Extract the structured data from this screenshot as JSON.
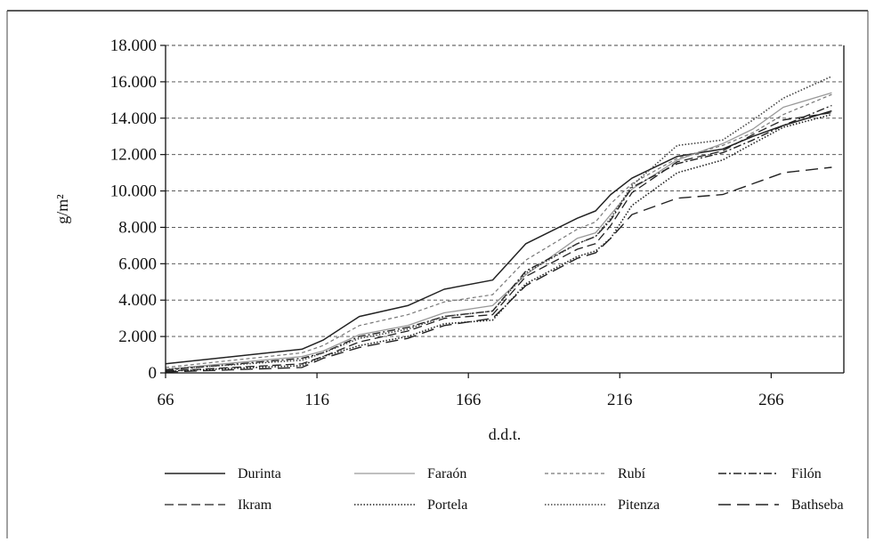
{
  "chart_data": {
    "type": "line",
    "title": "",
    "xlabel": "d.d.t.",
    "ylabel": "g/m²",
    "xlim": [
      66,
      290
    ],
    "ylim": [
      0,
      18000
    ],
    "x_ticks": [
      66,
      116,
      166,
      216,
      266
    ],
    "x_tick_labels": [
      "66",
      "116",
      "166",
      "216",
      "266"
    ],
    "y_ticks": [
      0,
      2000,
      4000,
      6000,
      8000,
      10000,
      12000,
      14000,
      16000,
      18000
    ],
    "y_tick_labels": [
      "0",
      "2.000",
      "4.000",
      "6.000",
      "8.000",
      "10.000",
      "12.000",
      "14.000",
      "16.000",
      "18.000"
    ],
    "grid": "horizontal dashed",
    "legend_position": "bottom",
    "series": [
      {
        "name": "Durinta",
        "style": "solid",
        "color": "#222222",
        "x": [
          66,
          111,
          118,
          130,
          146,
          158,
          174,
          185,
          202,
          208,
          213,
          220,
          235,
          250,
          260,
          270,
          286
        ],
        "y": [
          500,
          1300,
          1800,
          3100,
          3700,
          4600,
          5100,
          7100,
          8500,
          8900,
          9800,
          10700,
          11900,
          12300,
          13000,
          13600,
          14400
        ]
      },
      {
        "name": "Faraón",
        "style": "solid-light",
        "color": "#999999",
        "x": [
          66,
          111,
          118,
          130,
          146,
          158,
          174,
          185,
          202,
          208,
          213,
          220,
          235,
          250,
          260,
          270,
          286
        ],
        "y": [
          200,
          900,
          1200,
          2100,
          2600,
          3300,
          3700,
          5400,
          7400,
          7700,
          8700,
          10100,
          11700,
          12600,
          13400,
          14600,
          15400
        ]
      },
      {
        "name": "Rubí",
        "style": "short-dash",
        "color": "#777777",
        "x": [
          66,
          111,
          118,
          130,
          146,
          158,
          174,
          185,
          202,
          208,
          213,
          220,
          235,
          250,
          260,
          270,
          286
        ],
        "y": [
          300,
          1100,
          1500,
          2600,
          3200,
          3900,
          4300,
          6200,
          7900,
          8300,
          9300,
          10400,
          11800,
          12500,
          13200,
          14200,
          15300
        ]
      },
      {
        "name": "Filón",
        "style": "dash-dot",
        "color": "#222222",
        "x": [
          66,
          111,
          118,
          130,
          146,
          158,
          174,
          185,
          202,
          208,
          213,
          220,
          235,
          250,
          260,
          270,
          286
        ],
        "y": [
          150,
          800,
          1100,
          2000,
          2500,
          3100,
          3400,
          5600,
          7100,
          7500,
          8400,
          10200,
          11500,
          12100,
          12800,
          13600,
          14700
        ]
      },
      {
        "name": "Ikram",
        "style": "long-dash",
        "color": "#222222",
        "x": [
          66,
          111,
          118,
          130,
          146,
          158,
          174,
          185,
          202,
          208,
          213,
          220,
          235,
          250,
          260,
          270,
          286
        ],
        "y": [
          100,
          500,
          900,
          1700,
          2300,
          3000,
          3200,
          5300,
          6800,
          7100,
          8100,
          9900,
          11600,
          12200,
          13100,
          13900,
          14300
        ]
      },
      {
        "name": "Portela",
        "style": "dotted",
        "color": "#222222",
        "x": [
          66,
          111,
          118,
          130,
          146,
          158,
          174,
          185,
          202,
          208,
          213,
          220,
          235,
          250,
          260,
          270,
          286
        ],
        "y": [
          100,
          400,
          900,
          1500,
          2000,
          2700,
          2900,
          4900,
          6400,
          6700,
          7400,
          9200,
          11000,
          11700,
          12600,
          13500,
          14200
        ]
      },
      {
        "name": "Pitenza",
        "style": "dotted",
        "color": "#444444",
        "x": [
          66,
          111,
          118,
          130,
          146,
          158,
          174,
          185,
          202,
          208,
          213,
          220,
          235,
          250,
          260,
          270,
          286
        ],
        "y": [
          200,
          700,
          1100,
          1900,
          2400,
          3100,
          3400,
          5500,
          7100,
          7500,
          8500,
          10300,
          12500,
          12800,
          13900,
          15100,
          16300
        ]
      },
      {
        "name": "Bathseba",
        "style": "long-dash-gap",
        "color": "#222222",
        "x": [
          66,
          111,
          118,
          130,
          146,
          158,
          174,
          185,
          202,
          208,
          213,
          220,
          235,
          250,
          260,
          270,
          286
        ],
        "y": [
          50,
          300,
          800,
          1400,
          1900,
          2600,
          3000,
          4800,
          6300,
          6600,
          7400,
          8700,
          9600,
          9800,
          10400,
          11000,
          11300
        ]
      }
    ]
  }
}
